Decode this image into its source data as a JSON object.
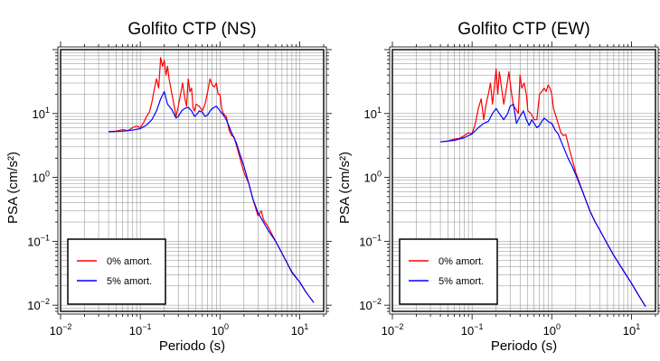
{
  "chart_data": [
    {
      "type": "line",
      "title": "Golfito CTP (NS)",
      "xlabel": "Periodo (s)",
      "ylabel": "PSA (cm/s²)",
      "xscale": "log",
      "yscale": "log",
      "xlim": [
        0.01,
        20
      ],
      "ylim": [
        0.008,
        100
      ],
      "grid": true,
      "legend_position": "bottom-left",
      "x_ticks": [
        {
          "base": "10",
          "exp": "−2"
        },
        {
          "base": "10",
          "exp": "−1"
        },
        {
          "base": "10",
          "exp": "0"
        },
        {
          "base": "10",
          "exp": "1"
        }
      ],
      "y_ticks": [
        {
          "base": "10",
          "exp": "−2"
        },
        {
          "base": "10",
          "exp": "−1"
        },
        {
          "base": "10",
          "exp": "0"
        },
        {
          "base": "10",
          "exp": "1"
        }
      ],
      "series": [
        {
          "name": "0% amort.",
          "color": "#ff0000",
          "x": [
            0.04,
            0.05,
            0.06,
            0.07,
            0.08,
            0.09,
            0.1,
            0.11,
            0.12,
            0.13,
            0.14,
            0.15,
            0.16,
            0.17,
            0.18,
            0.19,
            0.2,
            0.21,
            0.22,
            0.23,
            0.25,
            0.27,
            0.28,
            0.3,
            0.32,
            0.34,
            0.36,
            0.38,
            0.4,
            0.42,
            0.44,
            0.46,
            0.48,
            0.5,
            0.55,
            0.6,
            0.65,
            0.7,
            0.75,
            0.8,
            0.85,
            0.9,
            0.95,
            1.0,
            1.05,
            1.1,
            1.2,
            1.3,
            1.4,
            1.5,
            1.7,
            2.0,
            2.3,
            2.6,
            3.0,
            3.3,
            3.5,
            4.0,
            5.0,
            6.0,
            7.0,
            8.0,
            10.0,
            12.0,
            15.0
          ],
          "y": [
            5.2,
            5.3,
            5.6,
            5.4,
            6.0,
            6.4,
            6.0,
            7.2,
            9.0,
            10.5,
            15.0,
            24.0,
            35.0,
            25.0,
            75.0,
            55.0,
            68.0,
            40.0,
            55.0,
            35.0,
            20.0,
            12.0,
            9.0,
            13.0,
            20.0,
            30.0,
            18.0,
            13.0,
            35.0,
            22.0,
            25.0,
            12.0,
            11.0,
            14.0,
            13.0,
            11.0,
            14.0,
            22.0,
            35.0,
            28.0,
            26.0,
            30.0,
            20.0,
            20.0,
            12.0,
            10.0,
            9.0,
            5.5,
            4.5,
            4.3,
            2.5,
            1.2,
            0.8,
            0.45,
            0.25,
            0.3,
            0.22,
            0.17,
            0.1,
            0.065,
            0.045,
            0.032,
            0.023,
            0.016,
            0.011
          ]
        },
        {
          "name": "5% amort.",
          "color": "#0000ff",
          "x": [
            0.04,
            0.06,
            0.08,
            0.1,
            0.12,
            0.14,
            0.16,
            0.18,
            0.2,
            0.22,
            0.25,
            0.28,
            0.3,
            0.33,
            0.36,
            0.4,
            0.44,
            0.48,
            0.52,
            0.55,
            0.6,
            0.65,
            0.7,
            0.75,
            0.8,
            0.85,
            0.9,
            0.95,
            1.0,
            1.1,
            1.2,
            1.4,
            1.6,
            1.8,
            2.0,
            2.3,
            2.6,
            3.0,
            3.5,
            4.0,
            5.0,
            6.0,
            7.0,
            8.0,
            10.0,
            12.0,
            15.0
          ],
          "y": [
            5.2,
            5.3,
            5.5,
            5.8,
            6.6,
            8.0,
            11.0,
            17.0,
            22.0,
            14.0,
            11.5,
            8.5,
            9.0,
            11.0,
            12.0,
            12.5,
            11.0,
            9.0,
            10.0,
            11.0,
            10.5,
            9.0,
            9.5,
            11.0,
            12.0,
            12.5,
            13.0,
            12.0,
            11.0,
            9.5,
            8.0,
            5.0,
            3.5,
            2.2,
            1.5,
            0.8,
            0.45,
            0.28,
            0.2,
            0.15,
            0.1,
            0.065,
            0.045,
            0.033,
            0.023,
            0.016,
            0.011
          ]
        }
      ]
    },
    {
      "type": "line",
      "title": "Golfito CTP (EW)",
      "xlabel": "Periodo (s)",
      "ylabel": "PSA (cm/s²)",
      "xscale": "log",
      "yscale": "log",
      "xlim": [
        0.01,
        20
      ],
      "ylim": [
        0.008,
        100
      ],
      "grid": true,
      "legend_position": "bottom-left",
      "x_ticks": [
        {
          "base": "10",
          "exp": "−2"
        },
        {
          "base": "10",
          "exp": "−1"
        },
        {
          "base": "10",
          "exp": "0"
        },
        {
          "base": "10",
          "exp": "1"
        }
      ],
      "y_ticks": [
        {
          "base": "10",
          "exp": "−2"
        },
        {
          "base": "10",
          "exp": "−1"
        },
        {
          "base": "10",
          "exp": "0"
        },
        {
          "base": "10",
          "exp": "1"
        }
      ],
      "series": [
        {
          "name": "0% amort.",
          "color": "#ff0000",
          "x": [
            0.04,
            0.05,
            0.06,
            0.07,
            0.08,
            0.09,
            0.1,
            0.11,
            0.12,
            0.13,
            0.14,
            0.15,
            0.16,
            0.17,
            0.18,
            0.19,
            0.2,
            0.21,
            0.22,
            0.23,
            0.25,
            0.27,
            0.29,
            0.31,
            0.33,
            0.35,
            0.38,
            0.4,
            0.42,
            0.45,
            0.48,
            0.5,
            0.55,
            0.6,
            0.65,
            0.7,
            0.75,
            0.8,
            0.85,
            0.9,
            0.95,
            1.0,
            1.05,
            1.1,
            1.2,
            1.3,
            1.4,
            1.5,
            1.7,
            2.0,
            2.5,
            3.0,
            3.5,
            4.0,
            5.0,
            6.0,
            8.0,
            10.0,
            12.0,
            15.0
          ],
          "y": [
            3.6,
            3.7,
            4.0,
            4.1,
            4.5,
            5.0,
            4.8,
            7.0,
            12.0,
            17.0,
            8.0,
            14.0,
            20.0,
            30.0,
            14.0,
            25.0,
            50.0,
            20.0,
            45.0,
            30.0,
            14.0,
            25.0,
            45.0,
            22.0,
            13.0,
            12.0,
            10.0,
            40.0,
            25.0,
            30.0,
            20.0,
            11.0,
            10.0,
            8.0,
            8.0,
            20.0,
            22.0,
            25.0,
            22.0,
            28.0,
            25.0,
            20.0,
            12.0,
            10.0,
            7.0,
            5.0,
            4.5,
            4.7,
            2.5,
            1.2,
            0.55,
            0.3,
            0.2,
            0.15,
            0.09,
            0.06,
            0.034,
            0.022,
            0.015,
            0.0095
          ]
        },
        {
          "name": "5% amort.",
          "color": "#0000ff",
          "x": [
            0.04,
            0.06,
            0.08,
            0.1,
            0.12,
            0.14,
            0.16,
            0.18,
            0.2,
            0.22,
            0.25,
            0.28,
            0.3,
            0.33,
            0.36,
            0.4,
            0.44,
            0.48,
            0.52,
            0.56,
            0.6,
            0.65,
            0.7,
            0.75,
            0.8,
            0.85,
            0.9,
            1.0,
            1.1,
            1.2,
            1.4,
            1.6,
            1.8,
            2.0,
            2.5,
            3.0,
            3.5,
            4.0,
            5.0,
            6.0,
            8.0,
            10.0,
            12.0,
            15.0
          ],
          "y": [
            3.6,
            3.8,
            4.2,
            4.8,
            6.0,
            7.0,
            7.5,
            10.0,
            12.0,
            10.0,
            8.0,
            10.0,
            13.0,
            14.0,
            7.0,
            9.0,
            11.0,
            8.0,
            6.5,
            8.0,
            7.0,
            6.0,
            6.5,
            7.5,
            8.5,
            8.0,
            7.5,
            7.0,
            5.5,
            4.8,
            3.0,
            2.0,
            1.5,
            1.1,
            0.55,
            0.3,
            0.2,
            0.15,
            0.09,
            0.06,
            0.034,
            0.022,
            0.015,
            0.0095
          ]
        }
      ]
    }
  ]
}
